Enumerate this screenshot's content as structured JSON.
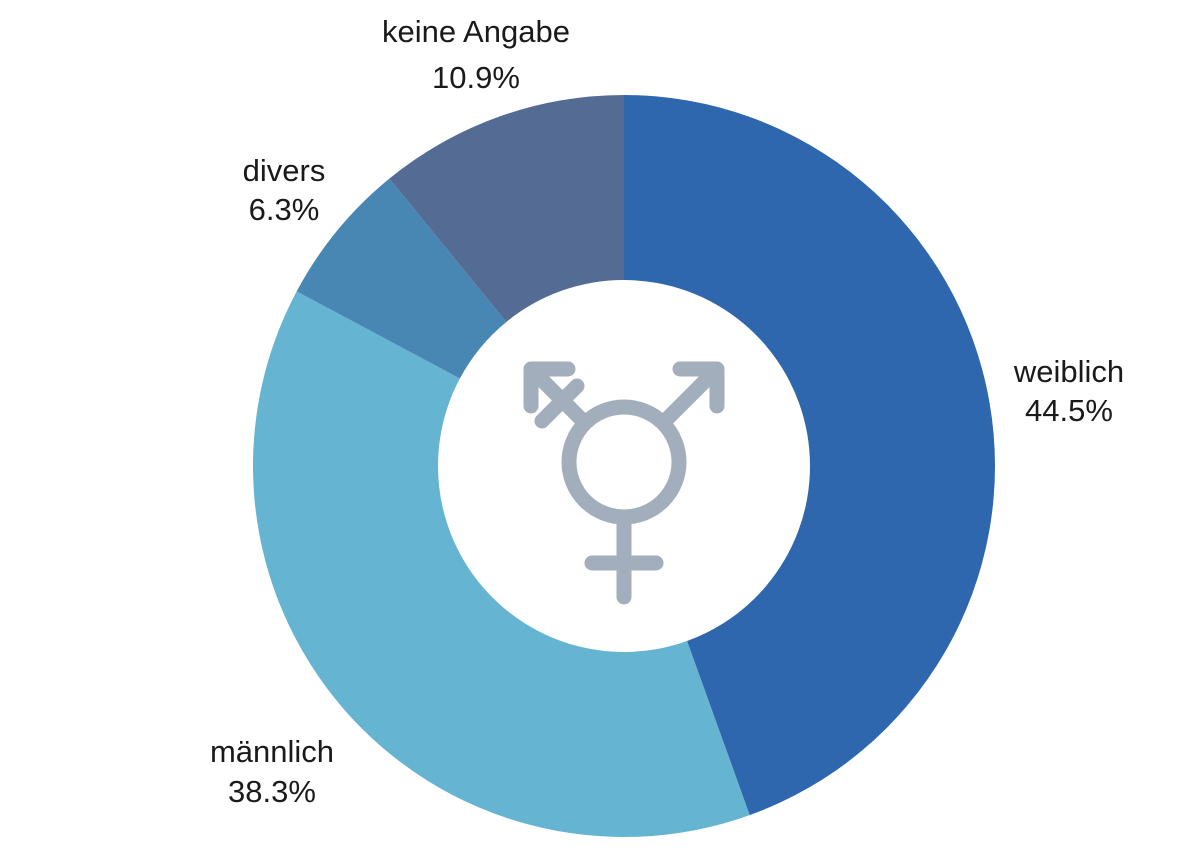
{
  "chart_data": {
    "type": "pie",
    "donut": true,
    "start": "top",
    "direction": "clockwise",
    "center_icon": "transgender-symbol-icon",
    "icon_color": "#A3AEBD",
    "slices": [
      {
        "label": "weiblich",
        "value": 44.5,
        "value_label": "44.5%",
        "color": "#2F67AE"
      },
      {
        "label": "männlich",
        "value": 38.3,
        "value_label": "38.3%",
        "color": "#65B4D2"
      },
      {
        "label": "divers",
        "value": 6.3,
        "value_label": "6.3%",
        "color": "#4886B3"
      },
      {
        "label": "keine Angabe",
        "value": 10.9,
        "value_label": "10.9%",
        "color": "#546C94"
      }
    ]
  }
}
